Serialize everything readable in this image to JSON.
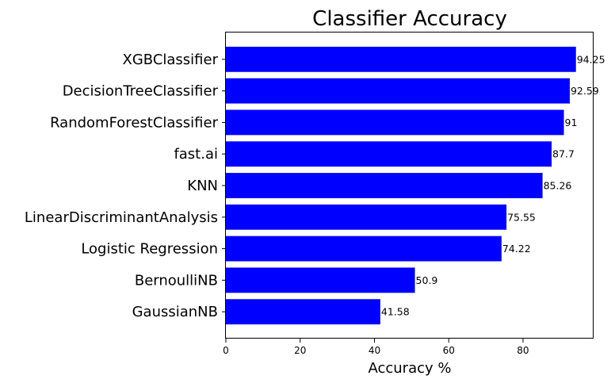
{
  "chart_data": {
    "type": "bar",
    "orientation": "horizontal",
    "title": "Classifier Accuracy",
    "xlabel": "Accuracy %",
    "ylabel": "",
    "categories": [
      "XGBClassifier",
      "DecisionTreeClassifier",
      "RandomForestClassifier",
      "fast.ai",
      "KNN",
      "LinearDiscriminantAnalysis",
      "Logistic Regression",
      "BernoulliNB",
      "GaussianNB"
    ],
    "values": [
      94.25,
      92.59,
      91,
      87.7,
      85.26,
      75.55,
      74.22,
      50.9,
      41.58
    ],
    "value_labels": [
      "94.25",
      "92.59",
      "91",
      "87.7",
      "85.26",
      "75.55",
      "74.22",
      "50.9",
      "41.58"
    ],
    "xlim": [
      0,
      99
    ],
    "xticks": [
      0,
      20,
      40,
      60,
      80
    ],
    "bar_color": "#0000ff",
    "grid": false,
    "legend": "none"
  }
}
